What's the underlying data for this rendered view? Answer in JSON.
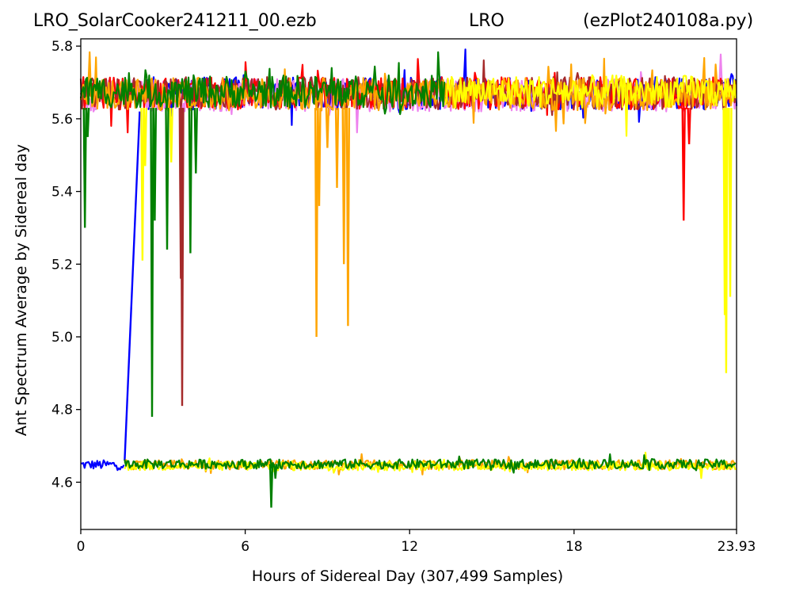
{
  "chart_data": {
    "type": "line",
    "title": {
      "left": "LRO_SolarCooker241211_00.ezb",
      "center": "LRO",
      "right": "(ezPlot240108a.py)"
    },
    "xlabel": "Hours of Sidereal Day  (307,499 Samples)",
    "ylabel": "Ant Spectrum Average by Sidereal day",
    "xlim": [
      0,
      23.93
    ],
    "ylim": [
      4.47,
      5.82
    ],
    "x_ticks": [
      0,
      6,
      12,
      18,
      23.93
    ],
    "x_tick_labels": [
      "0",
      "6",
      "12",
      "18",
      "23.93"
    ],
    "y_ticks": [
      4.6,
      4.8,
      5.0,
      5.2,
      5.4,
      5.6,
      5.8
    ],
    "y_tick_labels": [
      "4.6",
      "4.8",
      "5.0",
      "5.2",
      "5.4",
      "5.6",
      "5.8"
    ],
    "grid": false,
    "legend": "none",
    "series": [
      {
        "color": "#0000ff",
        "band_low": [
          0,
          1.6,
          4.648
        ],
        "jump": [
          [
            1.6,
            4.66
          ],
          [
            2.15,
            5.62
          ]
        ],
        "band_high": [
          2.15,
          23.93,
          5.67
        ]
      },
      {
        "color": "#ee82ee",
        "band_high": [
          0,
          23.93,
          5.665
        ]
      },
      {
        "color": "#ff0000",
        "band_high": [
          0,
          23.93,
          5.67
        ],
        "dips": [
          [
            22.0,
            5.32
          ],
          [
            22.2,
            5.53
          ]
        ]
      },
      {
        "color": "#a52a2a",
        "band_high": [
          0,
          23.93,
          5.67
        ],
        "dips": [
          [
            3.7,
            4.81
          ],
          [
            3.65,
            5.16
          ]
        ]
      },
      {
        "color": "#ffa500",
        "band_low": [
          1.6,
          23.93,
          4.648
        ],
        "band_high": [
          0,
          23.93,
          5.668
        ],
        "dips": [
          [
            8.6,
            5.0
          ],
          [
            8.7,
            5.36
          ],
          [
            9.0,
            5.52
          ],
          [
            9.6,
            5.2
          ],
          [
            9.75,
            5.03
          ],
          [
            9.35,
            5.41
          ],
          [
            13.85,
            4.66
          ]
        ]
      },
      {
        "color": "#ffff00",
        "band_low": [
          1.6,
          23.93,
          4.645
        ],
        "band_high": [
          13.3,
          23.93,
          5.675
        ],
        "dips": [
          [
            2.25,
            5.21
          ],
          [
            2.35,
            5.47
          ],
          [
            3.3,
            5.48
          ],
          [
            23.55,
            4.9
          ],
          [
            23.5,
            5.06
          ],
          [
            23.7,
            5.11
          ]
        ]
      },
      {
        "color": "#008000",
        "band_low": [
          1.6,
          23.93,
          4.65
        ],
        "band_high": [
          0,
          13.3,
          5.675
        ],
        "dips": [
          [
            0.15,
            5.3
          ],
          [
            2.6,
            4.78
          ],
          [
            3.15,
            5.24
          ],
          [
            4.0,
            5.23
          ],
          [
            4.2,
            5.45
          ],
          [
            2.7,
            5.32
          ],
          [
            0.25,
            5.55
          ],
          [
            6.95,
            4.53
          ],
          [
            7.1,
            4.61
          ]
        ]
      }
    ]
  }
}
